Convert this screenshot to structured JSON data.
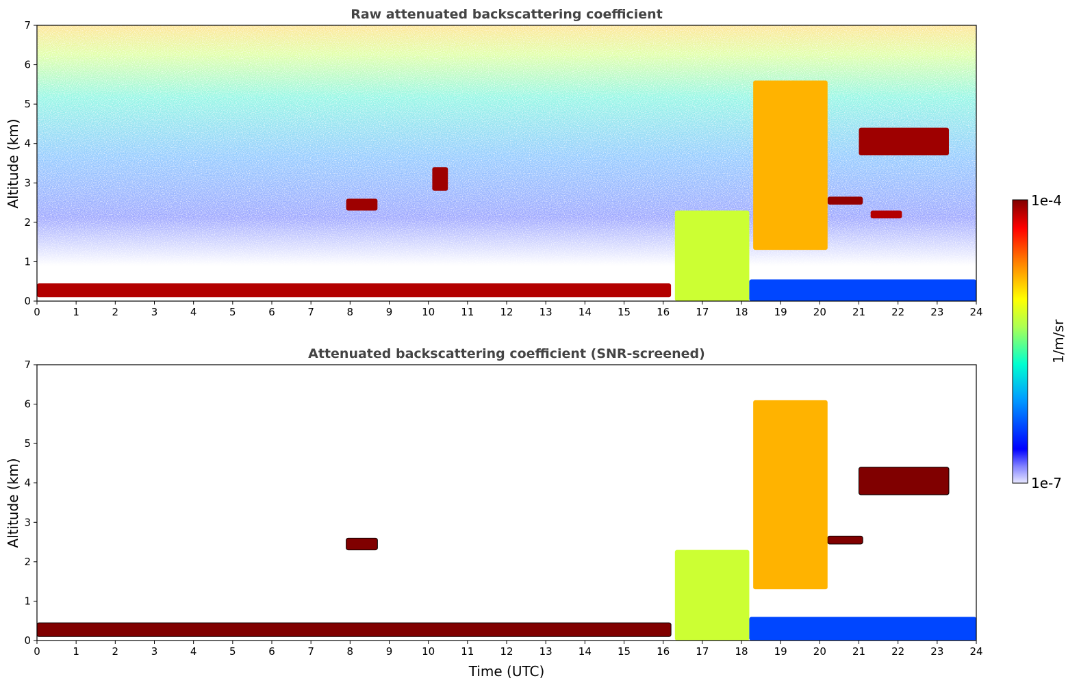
{
  "chart_data": [
    {
      "type": "heatmap",
      "title": "Raw attenuated backscattering coefficient",
      "xlabel": "",
      "ylabel": "Altitude (km)",
      "xlim": [
        0,
        24
      ],
      "ylim": [
        0,
        7
      ],
      "xticks": [
        "0",
        "1",
        "2",
        "3",
        "4",
        "5",
        "6",
        "7",
        "8",
        "9",
        "10",
        "11",
        "12",
        "13",
        "14",
        "15",
        "16",
        "17",
        "18",
        "19",
        "20",
        "21",
        "22",
        "23",
        "24"
      ],
      "yticks": [
        "0",
        "1",
        "2",
        "3",
        "4",
        "5",
        "6",
        "7"
      ],
      "features": [
        {
          "name": "surface aerosol layer",
          "x": [
            0,
            16.2
          ],
          "y": [
            0.1,
            0.45
          ],
          "level": 0.95
        },
        {
          "name": "boundary layer plume",
          "x": [
            16.3,
            18.2
          ],
          "y": [
            0,
            2.3
          ],
          "level": 0.55
        },
        {
          "name": "nighttime low layer",
          "x": [
            18.2,
            24
          ],
          "y": [
            0,
            0.55
          ],
          "level": 0.18
        },
        {
          "name": "cloud",
          "x": [
            7.9,
            8.7
          ],
          "y": [
            2.3,
            2.6
          ],
          "level": 0.97
        },
        {
          "name": "cloud",
          "x": [
            10.1,
            10.5
          ],
          "y": [
            2.8,
            3.4
          ],
          "level": 0.97
        },
        {
          "name": "cloud",
          "x": [
            20.2,
            21.1
          ],
          "y": [
            2.45,
            2.65
          ],
          "level": 0.98
        },
        {
          "name": "cloud",
          "x": [
            21.0,
            23.3
          ],
          "y": [
            3.7,
            4.4
          ],
          "level": 0.97
        },
        {
          "name": "cloud",
          "x": [
            21.3,
            22.1
          ],
          "y": [
            2.1,
            2.3
          ],
          "level": 0.95
        },
        {
          "name": "cirrus streak",
          "x": [
            18.3,
            20.2
          ],
          "y": [
            1.3,
            5.6
          ],
          "level": 0.7
        }
      ]
    },
    {
      "type": "heatmap",
      "title": "Attenuated backscattering coefficient (SNR-screened)",
      "xlabel": "Time (UTC)",
      "ylabel": "Altitude (km)",
      "xlim": [
        0,
        24
      ],
      "ylim": [
        0,
        7
      ],
      "xticks": [
        "0",
        "1",
        "2",
        "3",
        "4",
        "5",
        "6",
        "7",
        "8",
        "9",
        "10",
        "11",
        "12",
        "13",
        "14",
        "15",
        "16",
        "17",
        "18",
        "19",
        "20",
        "21",
        "22",
        "23",
        "24"
      ],
      "yticks": [
        "0",
        "1",
        "2",
        "3",
        "4",
        "5",
        "6",
        "7"
      ],
      "features": [
        {
          "name": "surface aerosol layer",
          "x": [
            0,
            16.2
          ],
          "y": [
            0.1,
            0.45
          ],
          "level": 1.0
        },
        {
          "name": "boundary layer plume",
          "x": [
            16.3,
            18.2
          ],
          "y": [
            0,
            2.3
          ],
          "level": 0.55
        },
        {
          "name": "nighttime low layer",
          "x": [
            18.2,
            24
          ],
          "y": [
            0,
            0.6
          ],
          "level": 0.18
        },
        {
          "name": "cloud",
          "x": [
            7.9,
            8.7
          ],
          "y": [
            2.3,
            2.6
          ],
          "level": 1.0
        },
        {
          "name": "cloud",
          "x": [
            20.2,
            21.1
          ],
          "y": [
            2.45,
            2.65
          ],
          "level": 1.0
        },
        {
          "name": "cloud",
          "x": [
            21.0,
            23.3
          ],
          "y": [
            3.7,
            4.4
          ],
          "level": 1.0
        },
        {
          "name": "cirrus streak",
          "x": [
            18.3,
            20.2
          ],
          "y": [
            1.3,
            6.1
          ],
          "level": 0.7
        }
      ]
    }
  ],
  "colorbar": {
    "max_label": "1e-4",
    "min_label": "1e-7",
    "unit_label": "1/m/sr"
  },
  "colors": {
    "colormap": [
      "#ffffff",
      "#0000ff",
      "#00a0ff",
      "#00ffd0",
      "#aaff55",
      "#ffff00",
      "#ff8000",
      "#ff0000",
      "#800000"
    ],
    "screened_extreme": "#000000"
  }
}
